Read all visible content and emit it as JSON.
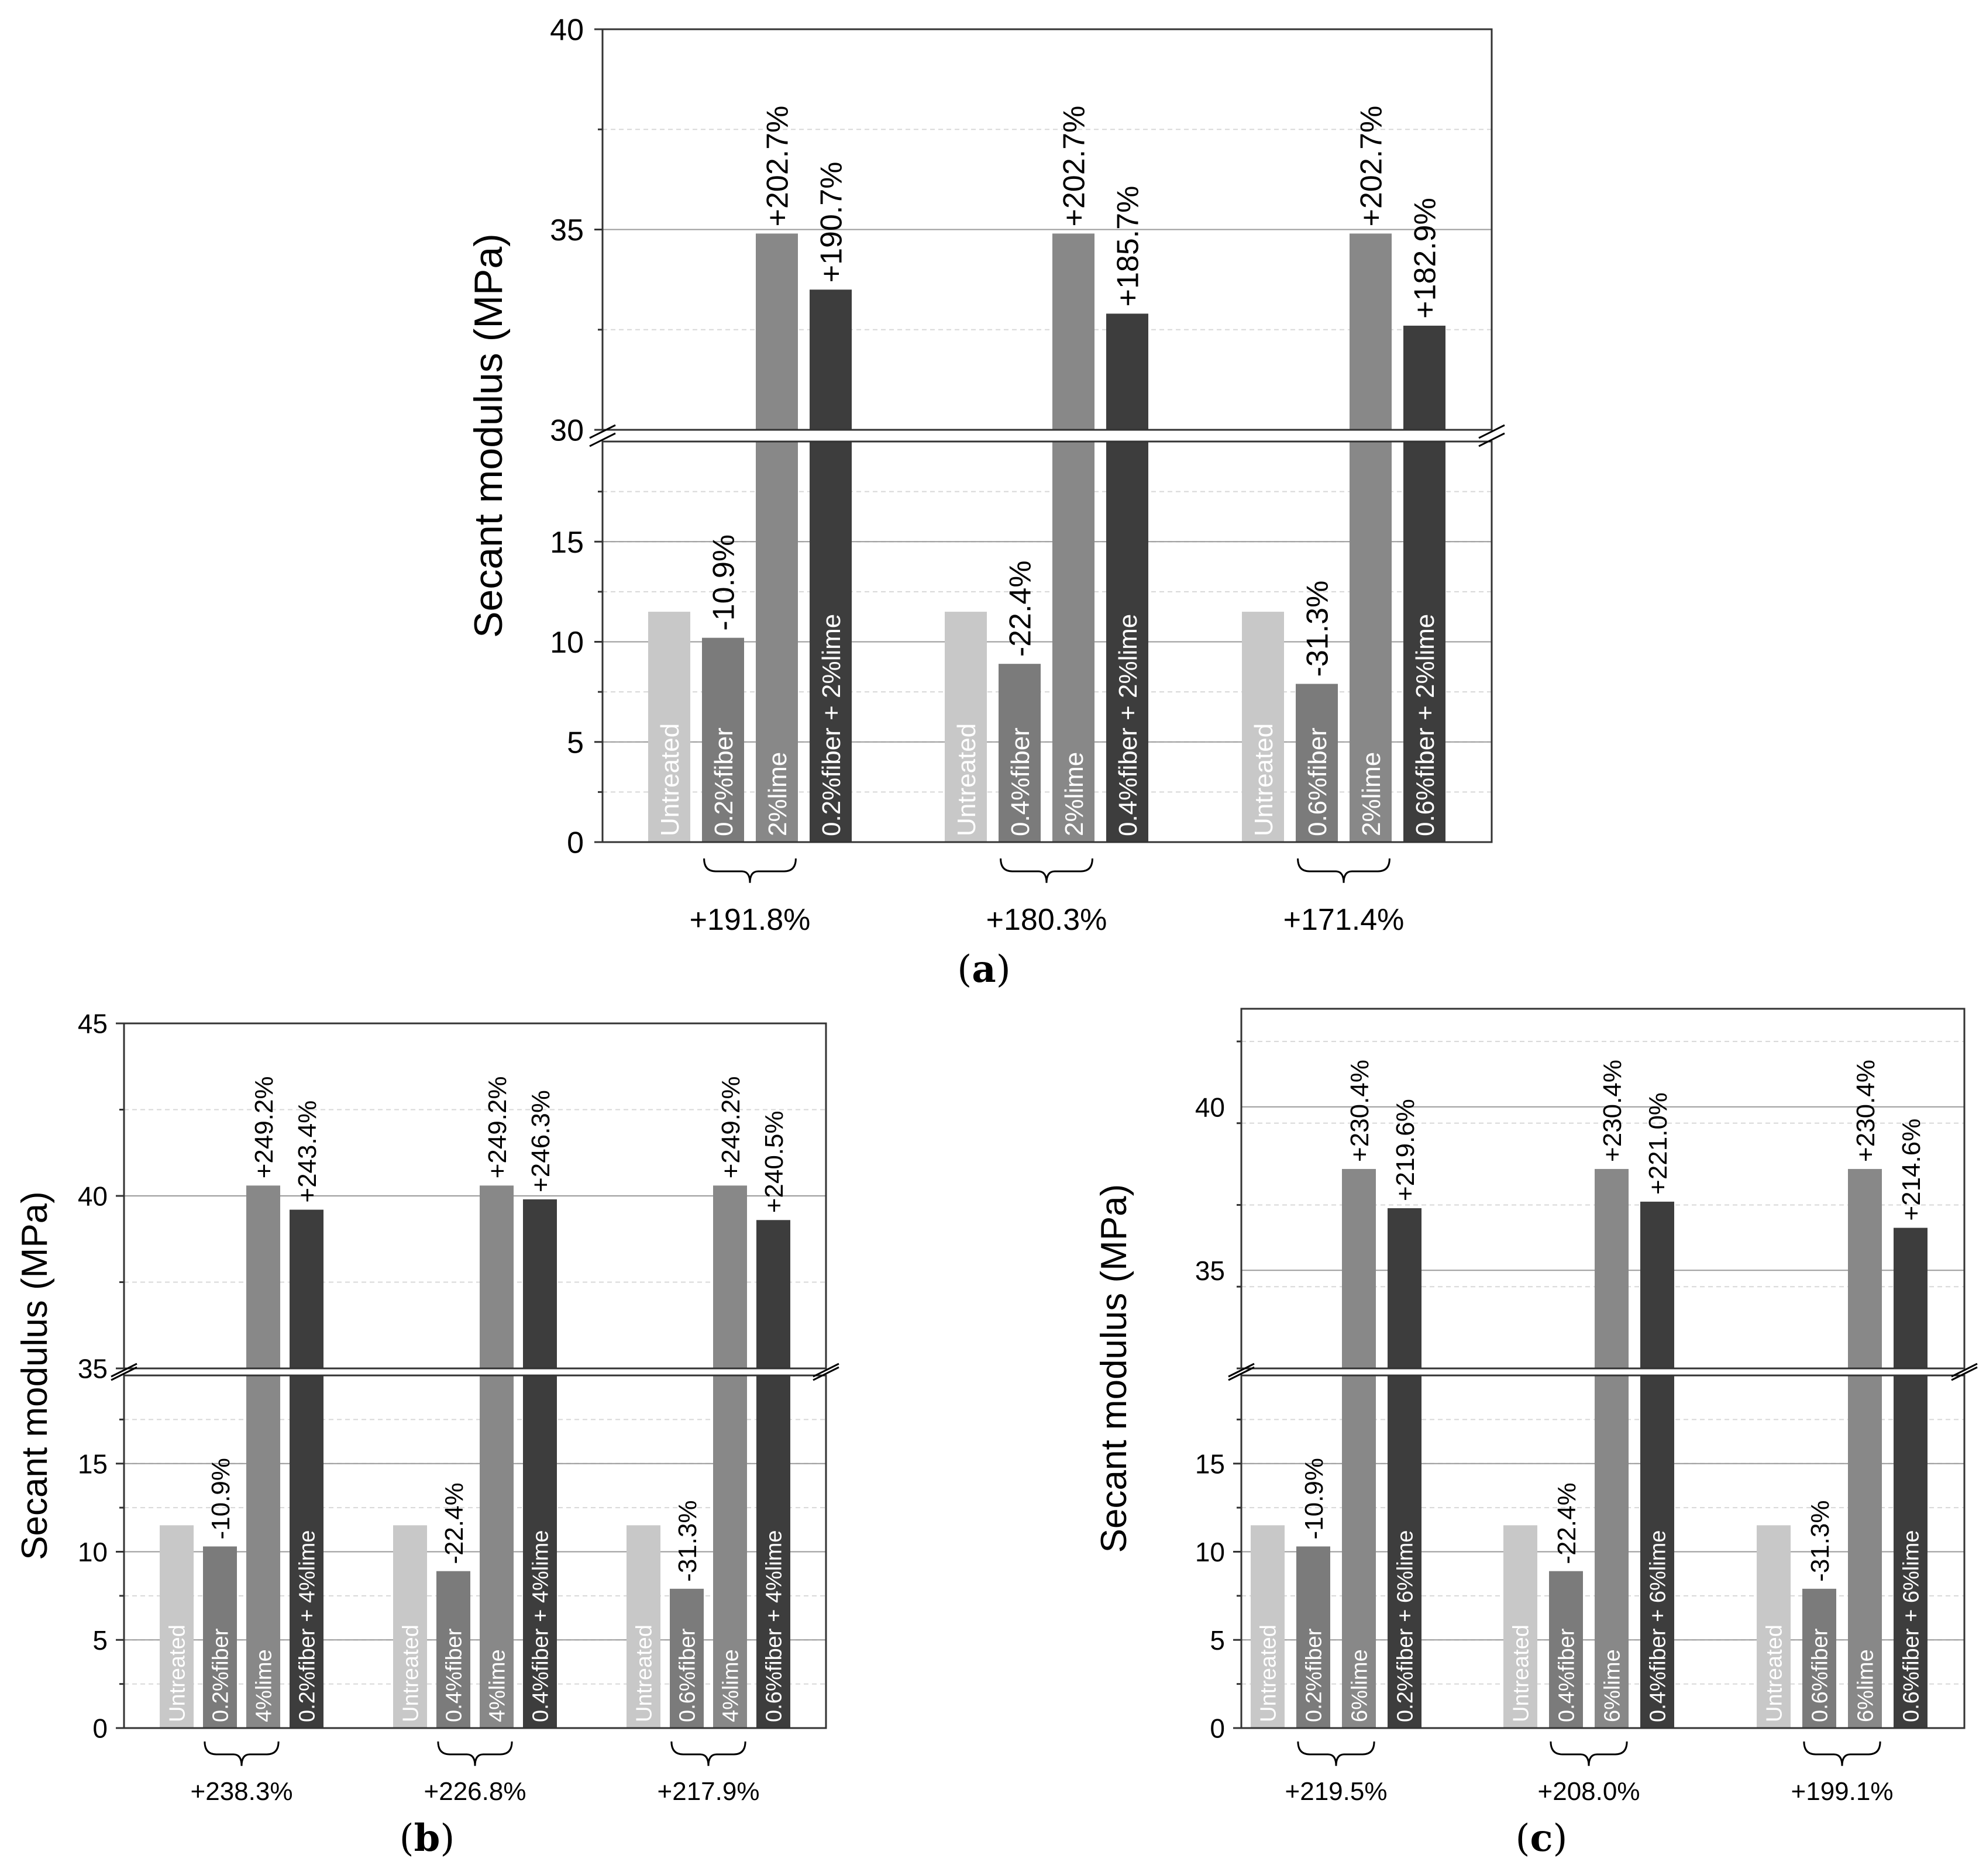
{
  "figure": {
    "ylabel": "Secant modulus (MPa)",
    "colors": {
      "untreated": "#c8c8c8",
      "fiber": "#7b7b7b",
      "lime": "#888888",
      "combo": "#3d3d3d",
      "gridline": "#9a9a9a",
      "subgrid": "#d8d8d8"
    }
  },
  "chart_data": [
    {
      "type": "bar",
      "panel": "a",
      "caption": "a",
      "ylabel": "Secant modulus (MPa)",
      "axis_break": true,
      "lower_ylim": [
        0,
        20
      ],
      "upper_ylim": [
        30,
        40
      ],
      "lower_ticks": [
        "0",
        "5",
        "10",
        "15"
      ],
      "upper_ticks": [
        "30",
        "35",
        "40"
      ],
      "groups": [
        {
          "bars": [
            {
              "label": "Untreated",
              "value": 11.5,
              "series": "untreated",
              "annotation": ""
            },
            {
              "label": "0.2%fiber",
              "value": 10.2,
              "series": "fiber",
              "annotation": "-10.9%"
            },
            {
              "label": "2%lime",
              "value": 34.9,
              "series": "lime",
              "annotation": "+202.7%"
            },
            {
              "label": "0.2%fiber + 2%lime",
              "value": 33.5,
              "series": "combo",
              "annotation": "+190.7%"
            }
          ],
          "bracket_label": "+191.8%"
        },
        {
          "bars": [
            {
              "label": "Untreated",
              "value": 11.5,
              "series": "untreated",
              "annotation": ""
            },
            {
              "label": "0.4%fiber",
              "value": 8.9,
              "series": "fiber",
              "annotation": "-22.4%"
            },
            {
              "label": "2%lime",
              "value": 34.9,
              "series": "lime",
              "annotation": "+202.7%"
            },
            {
              "label": "0.4%fiber + 2%lime",
              "value": 32.9,
              "series": "combo",
              "annotation": "+185.7%"
            }
          ],
          "bracket_label": "+180.3%"
        },
        {
          "bars": [
            {
              "label": "Untreated",
              "value": 11.5,
              "series": "untreated",
              "annotation": ""
            },
            {
              "label": "0.6%fiber",
              "value": 7.9,
              "series": "fiber",
              "annotation": "-31.3%"
            },
            {
              "label": "2%lime",
              "value": 34.9,
              "series": "lime",
              "annotation": "+202.7%"
            },
            {
              "label": "0.6%fiber + 2%lime",
              "value": 32.6,
              "series": "combo",
              "annotation": "+182.9%"
            }
          ],
          "bracket_label": "+171.4%"
        }
      ]
    },
    {
      "type": "bar",
      "panel": "b",
      "caption": "b",
      "ylabel": "Secant modulus (MPa)",
      "axis_break": true,
      "lower_ylim": [
        0,
        20
      ],
      "upper_ylim": [
        35,
        45
      ],
      "lower_ticks": [
        "0",
        "5",
        "10",
        "15"
      ],
      "upper_ticks": [
        "35",
        "40",
        "45"
      ],
      "groups": [
        {
          "bars": [
            {
              "label": "Untreated",
              "value": 11.5,
              "series": "untreated",
              "annotation": ""
            },
            {
              "label": "0.2%fiber",
              "value": 10.3,
              "series": "fiber",
              "annotation": "-10.9%"
            },
            {
              "label": "4%lime",
              "value": 40.3,
              "series": "lime",
              "annotation": "+249.2%"
            },
            {
              "label": "0.2%fiber + 4%lime",
              "value": 39.6,
              "series": "combo",
              "annotation": "+243.4%"
            }
          ],
          "bracket_label": "+238.3%"
        },
        {
          "bars": [
            {
              "label": "Untreated",
              "value": 11.5,
              "series": "untreated",
              "annotation": ""
            },
            {
              "label": "0.4%fiber",
              "value": 8.9,
              "series": "fiber",
              "annotation": "-22.4%"
            },
            {
              "label": "4%lime",
              "value": 40.3,
              "series": "lime",
              "annotation": "+249.2%"
            },
            {
              "label": "0.4%fiber + 4%lime",
              "value": 39.9,
              "series": "combo",
              "annotation": "+246.3%"
            }
          ],
          "bracket_label": "+226.8%"
        },
        {
          "bars": [
            {
              "label": "Untreated",
              "value": 11.5,
              "series": "untreated",
              "annotation": ""
            },
            {
              "label": "0.6%fiber",
              "value": 7.9,
              "series": "fiber",
              "annotation": "-31.3%"
            },
            {
              "label": "4%lime",
              "value": 40.3,
              "series": "lime",
              "annotation": "+249.2%"
            },
            {
              "label": "0.6%fiber + 4%lime",
              "value": 39.3,
              "series": "combo",
              "annotation": "+240.5%"
            }
          ],
          "bracket_label": "+217.9%"
        }
      ]
    },
    {
      "type": "bar",
      "panel": "c",
      "caption": "c",
      "ylabel": "Secant modulus (MPa)",
      "axis_break": true,
      "lower_ylim": [
        0,
        20
      ],
      "upper_ylim": [
        32,
        43
      ],
      "lower_ticks": [
        "0",
        "5",
        "10",
        "15"
      ],
      "upper_ticks": [
        "35",
        "40"
      ],
      "groups": [
        {
          "bars": [
            {
              "label": "Untreated",
              "value": 11.5,
              "series": "untreated",
              "annotation": ""
            },
            {
              "label": "0.2%fiber",
              "value": 10.3,
              "series": "fiber",
              "annotation": "-10.9%"
            },
            {
              "label": "6%lime",
              "value": 38.1,
              "series": "lime",
              "annotation": "+230.4%"
            },
            {
              "label": "0.2%fiber + 6%lime",
              "value": 36.9,
              "series": "combo",
              "annotation": "+219.6%"
            }
          ],
          "bracket_label": "+219.5%"
        },
        {
          "bars": [
            {
              "label": "Untreated",
              "value": 11.5,
              "series": "untreated",
              "annotation": ""
            },
            {
              "label": "0.4%fiber",
              "value": 8.9,
              "series": "fiber",
              "annotation": "-22.4%"
            },
            {
              "label": "6%lime",
              "value": 38.1,
              "series": "lime",
              "annotation": "+230.4%"
            },
            {
              "label": "0.4%fiber + 6%lime",
              "value": 37.1,
              "series": "combo",
              "annotation": "+221.0%"
            }
          ],
          "bracket_label": "+208.0%"
        },
        {
          "bars": [
            {
              "label": "Untreated",
              "value": 11.5,
              "series": "untreated",
              "annotation": ""
            },
            {
              "label": "0.6%fiber",
              "value": 7.9,
              "series": "fiber",
              "annotation": "-31.3%"
            },
            {
              "label": "6%lime",
              "value": 38.1,
              "series": "lime",
              "annotation": "+230.4%"
            },
            {
              "label": "0.6%fiber + 6%lime",
              "value": 36.3,
              "series": "combo",
              "annotation": "+214.6%"
            }
          ],
          "bracket_label": "+199.1%"
        }
      ]
    }
  ]
}
